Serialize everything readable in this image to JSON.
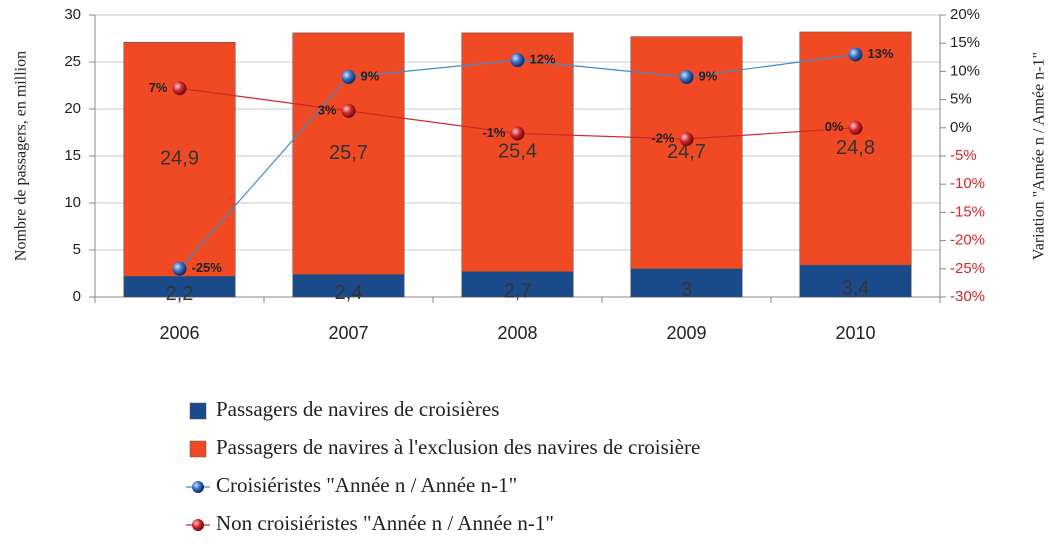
{
  "chart_data": {
    "type": "bar",
    "categories": [
      "2006",
      "2007",
      "2008",
      "2009",
      "2010"
    ],
    "y_label": "Nombre de passagers, en million",
    "y2_label": "Variation \"Année n / Année n-1\"",
    "ylim": [
      0,
      30
    ],
    "yticks": [
      0,
      5,
      10,
      15,
      20,
      25,
      30
    ],
    "y2lim": [
      -30,
      20
    ],
    "y2ticks": [
      {
        "value": -30,
        "label": "-30%"
      },
      {
        "value": -25,
        "label": "-25%"
      },
      {
        "value": -20,
        "label": "-20%"
      },
      {
        "value": -15,
        "label": "-15%"
      },
      {
        "value": -10,
        "label": "-10%"
      },
      {
        "value": -5,
        "label": "-5%"
      },
      {
        "value": 0,
        "label": "0%"
      },
      {
        "value": 5,
        "label": "5%"
      },
      {
        "value": 10,
        "label": "10%"
      },
      {
        "value": 15,
        "label": "15%"
      },
      {
        "value": 20,
        "label": "20%"
      }
    ],
    "grid": true,
    "series": [
      {
        "name": "Passagers de navires de croisières",
        "type": "bar",
        "color": "#1b4a8a",
        "values": [
          2.2,
          2.4,
          2.7,
          3,
          3.4
        ],
        "value_labels": [
          "2,2",
          "2,4",
          "2,7",
          "3",
          "3,4"
        ]
      },
      {
        "name": "Passagers de navires à l'exclusion des navires de croisière",
        "type": "bar",
        "color": "#f04a24",
        "values": [
          24.9,
          25.7,
          25.4,
          24.7,
          24.8
        ],
        "value_labels": [
          "24,9",
          "25,7",
          "25,4",
          "24,7",
          "24,8"
        ]
      },
      {
        "name": "Croisiéristes \"Année n / Année n-1\"",
        "type": "line",
        "axis": "y2",
        "color": "#3d8ccc",
        "values": [
          -25,
          9,
          12,
          9,
          13
        ],
        "value_labels": [
          "-25%",
          "9%",
          "12%",
          "9%",
          "13%"
        ]
      },
      {
        "name": "Non croisiéristes \"Année n / Année n-1\"",
        "type": "line",
        "axis": "y2",
        "color": "#d0282e",
        "values": [
          7,
          3,
          -1,
          -2,
          0
        ],
        "value_labels": [
          "7%",
          "3%",
          "-1%",
          "-2%",
          "0%"
        ]
      }
    ]
  }
}
